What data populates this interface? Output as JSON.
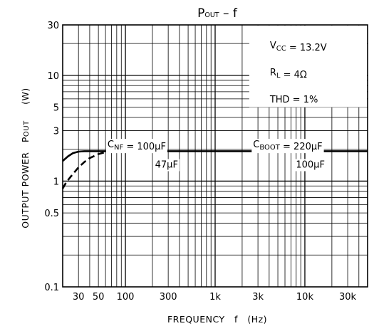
{
  "chart_data": {
    "type": "line",
    "title": {
      "main": "P",
      "sub": "OUT",
      "rest": " –  f"
    },
    "xlabel": "FREQUENCY   f   (Hz)",
    "ylabel": "OUTPUT POWER   P",
    "ylabel_sub": "OUT",
    "ylabel_unit": "(W)",
    "x_scale": "log",
    "y_scale": "log",
    "xlim": [
      20,
      50000
    ],
    "ylim": [
      0.1,
      30
    ],
    "grid": true,
    "x_ticks": [
      {
        "value": 30,
        "label": "30"
      },
      {
        "value": 50,
        "label": "50"
      },
      {
        "value": 100,
        "label": "100"
      },
      {
        "value": 300,
        "label": "300"
      },
      {
        "value": 1000,
        "label": "1k"
      },
      {
        "value": 3000,
        "label": "3k"
      },
      {
        "value": 10000,
        "label": "10k"
      },
      {
        "value": 30000,
        "label": "30k"
      }
    ],
    "y_ticks": [
      {
        "value": 0.1,
        "label": "0.1"
      },
      {
        "value": 0.5,
        "label": "0.5"
      },
      {
        "value": 1,
        "label": "1"
      },
      {
        "value": 3,
        "label": "3"
      },
      {
        "value": 5,
        "label": "5"
      },
      {
        "value": 10,
        "label": "10"
      },
      {
        "value": 30,
        "label": "30"
      }
    ],
    "series": [
      {
        "style": "solid",
        "x": [
          20,
          23,
          26,
          30,
          35,
          40,
          50,
          70,
          100,
          1000,
          10000,
          50000
        ],
        "y": [
          1.55,
          1.72,
          1.84,
          1.9,
          1.92,
          1.92,
          1.92,
          1.92,
          1.92,
          1.92,
          1.92,
          1.92
        ]
      },
      {
        "style": "dashed",
        "x": [
          20,
          22,
          25,
          30,
          35,
          40,
          50,
          60,
          70,
          80
        ],
        "y": [
          0.85,
          0.98,
          1.12,
          1.35,
          1.52,
          1.65,
          1.8,
          1.88,
          1.91,
          1.92
        ]
      }
    ],
    "annotations": [
      {
        "parts": [
          {
            "t": "V"
          },
          {
            "t": "CC",
            "sub": true
          },
          {
            "t": " = 13.2V"
          }
        ],
        "x": 4000,
        "y": 19.5
      },
      {
        "parts": [
          {
            "t": "R"
          },
          {
            "t": "L",
            "sub": true
          },
          {
            "t": " = 4Ω"
          }
        ],
        "x": 4000,
        "y": 10.8
      },
      {
        "parts": [
          {
            "t": "THD = 1%"
          }
        ],
        "x": 4000,
        "y": 6.0
      },
      {
        "parts": [
          {
            "t": "C"
          },
          {
            "t": "NF",
            "sub": true
          },
          {
            "t": " = 100μF"
          }
        ],
        "x": 62,
        "y": 2.25
      },
      {
        "parts": [
          {
            "t": "C"
          },
          {
            "t": "BOOT",
            "sub": true
          },
          {
            "t": " = 220μF"
          }
        ],
        "x": 2600,
        "y": 2.25
      },
      {
        "parts": [
          {
            "t": "47μF"
          }
        ],
        "x": 210,
        "y": 1.45
      },
      {
        "parts": [
          {
            "t": "100μF"
          }
        ],
        "x": 7800,
        "y": 1.45
      }
    ]
  }
}
